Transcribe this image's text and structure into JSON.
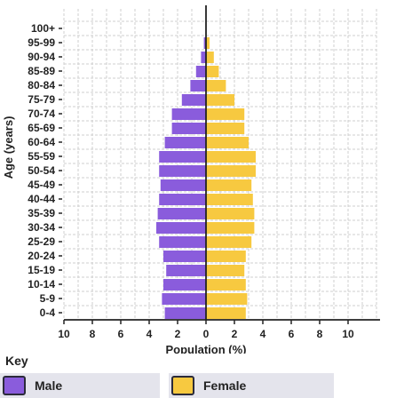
{
  "chart_data": {
    "type": "bar",
    "orientation": "horizontal",
    "layout": "population-pyramid",
    "title": "",
    "xlabel": "Population (%)",
    "ylabel": "Age (years)",
    "categories": [
      "0-4",
      "5-9",
      "10-14",
      "15-19",
      "20-24",
      "25-29",
      "30-34",
      "35-39",
      "40-44",
      "45-49",
      "50-54",
      "55-59",
      "60-64",
      "65-69",
      "70-74",
      "75-79",
      "80-84",
      "85-89",
      "90-94",
      "95-99",
      "100+"
    ],
    "xticks": [
      "10",
      "8",
      "6",
      "4",
      "2",
      "0",
      "2",
      "4",
      "6",
      "8",
      "10"
    ],
    "xlim": [
      -10,
      10
    ],
    "grid": true,
    "series": [
      {
        "name": "Male",
        "color": "#8a5cdc",
        "values": [
          2.9,
          3.1,
          3.0,
          2.8,
          3.0,
          3.3,
          3.5,
          3.4,
          3.3,
          3.2,
          3.3,
          3.3,
          2.9,
          2.4,
          2.4,
          1.7,
          1.1,
          0.7,
          0.35,
          0.15,
          0.0
        ]
      },
      {
        "name": "Female",
        "color": "#f7c940",
        "values": [
          2.8,
          2.9,
          2.8,
          2.7,
          2.8,
          3.2,
          3.4,
          3.4,
          3.3,
          3.2,
          3.5,
          3.5,
          3.0,
          2.7,
          2.7,
          2.0,
          1.4,
          0.9,
          0.55,
          0.25,
          0.0
        ]
      }
    ]
  },
  "key": {
    "title": "Key",
    "items": [
      {
        "label": "Male",
        "color": "#8a5cdc"
      },
      {
        "label": "Female",
        "color": "#f7c940"
      }
    ]
  }
}
